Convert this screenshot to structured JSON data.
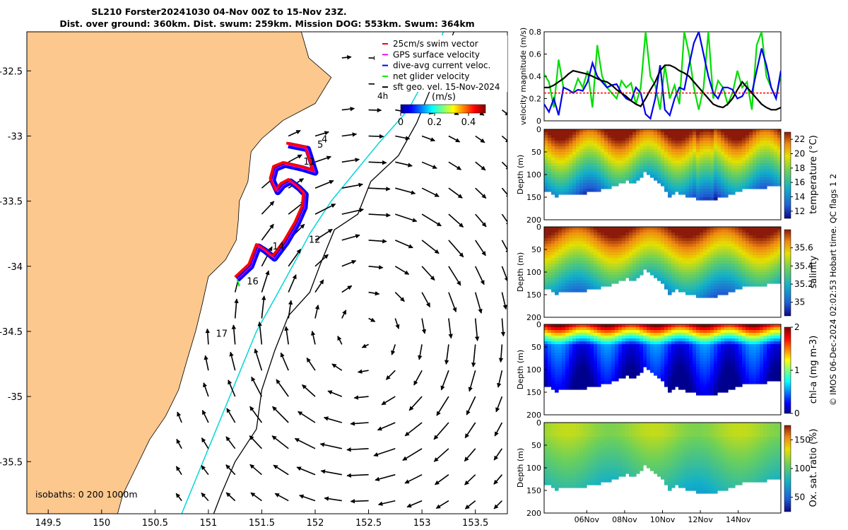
{
  "figure": {
    "title_line1": "SL210 Forster20241030 04-Nov 00Z to 15-Nov 23Z.",
    "title_line2": "Dist. over ground: 360km. Dist. swum: 259km. Mission DOG: 553km. Swum: 364km",
    "credit": "© IMOS 06-Dec-2024 02:02:53 Hobart time. QC flags 1  2"
  },
  "chart_data": [
    {
      "type": "map",
      "name": "glider-track-map",
      "xlim": [
        149.3,
        153.8
      ],
      "ylim": [
        -35.9,
        -32.2
      ],
      "x_ticks": [
        149.5,
        150,
        150.5,
        151,
        151.5,
        152,
        152.5,
        153,
        153.5
      ],
      "x_tick_labels": [
        "149.5",
        "150",
        "150.5",
        "151",
        "151.5",
        "152",
        "152.5",
        "153",
        "153.5"
      ],
      "y_ticks": [
        -32.5,
        -33,
        -33.5,
        -34,
        -34.5,
        -35,
        -35.5
      ],
      "y_tick_labels": [
        "-32.5",
        "-33",
        "-33.5",
        "-34",
        "-34.5",
        "-35",
        "-35.5"
      ],
      "legend": [
        {
          "label": "25cm/s swim vector",
          "color": "#ff0000"
        },
        {
          "label": "GPS surface velocity",
          "color": "#ff00ff"
        },
        {
          "label": "dive-avg current veloc.",
          "color": "#0000ff"
        },
        {
          "label": "net glider velocity",
          "color": "#00ee00"
        },
        {
          "label": "sft geo. vel. 15-Nov-2024",
          "color": "#000000"
        }
      ],
      "legend_time_label": "4h",
      "colorbar": {
        "title": "(m/s)",
        "ticks": [
          "0",
          "0.2",
          "0.4"
        ],
        "range": [
          0,
          0.5
        ]
      },
      "isobath_note": "isobaths: 0   200   1000m",
      "coast": [
        {
          "lon": 149.3,
          "lat": -32.2
        },
        {
          "lon": 151.87,
          "lat": -32.2
        },
        {
          "lon": 151.94,
          "lat": -32.4
        },
        {
          "lon": 152.15,
          "lat": -32.55
        },
        {
          "lon": 152.0,
          "lat": -32.75
        },
        {
          "lon": 151.7,
          "lat": -32.88
        },
        {
          "lon": 151.5,
          "lat": -33.02
        },
        {
          "lon": 151.4,
          "lat": -33.12
        },
        {
          "lon": 151.37,
          "lat": -33.35
        },
        {
          "lon": 151.29,
          "lat": -33.5
        },
        {
          "lon": 151.28,
          "lat": -33.65
        },
        {
          "lon": 151.26,
          "lat": -33.8
        },
        {
          "lon": 151.16,
          "lat": -33.95
        },
        {
          "lon": 151.0,
          "lat": -34.08
        },
        {
          "lon": 150.94,
          "lat": -34.3
        },
        {
          "lon": 150.88,
          "lat": -34.5
        },
        {
          "lon": 150.8,
          "lat": -34.72
        },
        {
          "lon": 150.72,
          "lat": -34.95
        },
        {
          "lon": 150.6,
          "lat": -35.15
        },
        {
          "lon": 150.45,
          "lat": -35.33
        },
        {
          "lon": 150.32,
          "lat": -35.55
        },
        {
          "lon": 150.2,
          "lat": -35.75
        },
        {
          "lon": 150.15,
          "lat": -35.9
        },
        {
          "lon": 149.3,
          "lat": -35.9
        }
      ],
      "isobath_200": [
        {
          "lon": 153.2,
          "lat": -32.2
        },
        {
          "lon": 153.07,
          "lat": -32.5
        },
        {
          "lon": 152.87,
          "lat": -32.8
        },
        {
          "lon": 152.6,
          "lat": -33.05
        },
        {
          "lon": 152.4,
          "lat": -33.25
        },
        {
          "lon": 152.15,
          "lat": -33.5
        },
        {
          "lon": 151.95,
          "lat": -33.75
        },
        {
          "lon": 151.82,
          "lat": -33.95
        },
        {
          "lon": 151.62,
          "lat": -34.25
        },
        {
          "lon": 151.45,
          "lat": -34.5
        },
        {
          "lon": 151.3,
          "lat": -34.8
        },
        {
          "lon": 151.15,
          "lat": -35.1
        },
        {
          "lon": 151.0,
          "lat": -35.4
        },
        {
          "lon": 150.85,
          "lat": -35.7
        },
        {
          "lon": 150.75,
          "lat": -35.9
        }
      ],
      "isobath_1000": [
        {
          "lon": 153.3,
          "lat": -32.2
        },
        {
          "lon": 153.2,
          "lat": -32.4
        },
        {
          "lon": 153.1,
          "lat": -32.6
        },
        {
          "lon": 152.95,
          "lat": -32.9
        },
        {
          "lon": 152.78,
          "lat": -33.15
        },
        {
          "lon": 152.52,
          "lat": -33.35
        },
        {
          "lon": 152.4,
          "lat": -33.6
        },
        {
          "lon": 152.18,
          "lat": -33.72
        },
        {
          "lon": 152.05,
          "lat": -33.98
        },
        {
          "lon": 151.95,
          "lat": -34.2
        },
        {
          "lon": 151.75,
          "lat": -34.38
        },
        {
          "lon": 151.62,
          "lat": -34.65
        },
        {
          "lon": 151.5,
          "lat": -34.95
        },
        {
          "lon": 151.45,
          "lat": -35.25
        },
        {
          "lon": 151.25,
          "lat": -35.5
        },
        {
          "lon": 151.12,
          "lat": -35.75
        },
        {
          "lon": 151.05,
          "lat": -35.9
        }
      ],
      "track": [
        {
          "lon": 151.27,
          "lat": -34.1
        },
        {
          "lon": 151.4,
          "lat": -34.0
        },
        {
          "lon": 151.47,
          "lat": -33.85
        },
        {
          "lon": 151.53,
          "lat": -33.88
        },
        {
          "lon": 151.62,
          "lat": -33.94
        },
        {
          "lon": 151.73,
          "lat": -33.82
        },
        {
          "lon": 151.83,
          "lat": -33.68
        },
        {
          "lon": 151.9,
          "lat": -33.55
        },
        {
          "lon": 151.91,
          "lat": -33.45
        },
        {
          "lon": 151.85,
          "lat": -33.4
        },
        {
          "lon": 151.77,
          "lat": -33.35
        },
        {
          "lon": 151.7,
          "lat": -33.38
        },
        {
          "lon": 151.65,
          "lat": -33.43
        },
        {
          "lon": 151.6,
          "lat": -33.34
        },
        {
          "lon": 151.63,
          "lat": -33.25
        },
        {
          "lon": 151.72,
          "lat": -33.22
        },
        {
          "lon": 151.88,
          "lat": -33.25
        },
        {
          "lon": 152.0,
          "lat": -33.28
        },
        {
          "lon": 151.93,
          "lat": -33.1
        },
        {
          "lon": 151.75,
          "lat": -33.07
        }
      ],
      "track_day_labels": [
        {
          "text": "4",
          "lon": 152.06,
          "lat": -33.05
        },
        {
          "text": "5",
          "lon": 152.02,
          "lat": -33.09
        },
        {
          "text": "11",
          "lon": 151.89,
          "lat": -33.22
        },
        {
          "text": "12",
          "lon": 151.94,
          "lat": -33.82
        },
        {
          "text": "14",
          "lon": 151.6,
          "lat": -33.87
        },
        {
          "text": "16",
          "lon": 151.36,
          "lat": -34.14
        },
        {
          "text": "17",
          "lon": 151.07,
          "lat": -34.54
        }
      ],
      "vector_field": {
        "lon_min": 150.75,
        "lon_max": 153.75,
        "lon_step": 0.25,
        "lat_min": -35.8,
        "lat_max": -32.4,
        "lat_step": 0.2,
        "eddy_center": {
          "lon": 152.45,
          "lat": -34.5
        }
      }
    },
    {
      "type": "line",
      "name": "velocity-panel",
      "ylabel": "velocity magnitude (m/s)",
      "ylim": [
        0,
        0.8
      ],
      "y_ticks": [
        "0",
        "0.2",
        "0.4",
        "0.6",
        "0.8"
      ],
      "series": [
        {
          "name": "net glider velocity",
          "color": "#00dd00",
          "values": [
            0.42,
            0.35,
            0.12,
            0.55,
            0.3,
            0.28,
            0.25,
            0.38,
            0.3,
            0.45,
            0.12,
            0.68,
            0.4,
            0.3,
            0.25,
            0.2,
            0.36,
            0.3,
            0.34,
            0.15,
            0.3,
            0.8,
            0.4,
            0.32,
            0.1,
            0.5,
            0.2,
            0.32,
            0.15,
            0.8,
            0.6,
            0.3,
            0.1,
            0.3,
            0.8,
            0.2,
            0.36,
            0.3,
            0.15,
            0.25,
            0.45,
            0.3,
            0.35,
            0.1,
            0.68,
            0.8,
            0.4,
            0.3,
            0.2,
            0.42
          ]
        },
        {
          "name": "dive-avg current veloc.",
          "color": "#0000ee",
          "values": [
            0.15,
            0.08,
            0.2,
            0.05,
            0.3,
            0.28,
            0.25,
            0.28,
            0.27,
            0.35,
            0.52,
            0.4,
            0.35,
            0.3,
            0.32,
            0.33,
            0.25,
            0.2,
            0.18,
            0.3,
            0.25,
            0.06,
            0.02,
            0.2,
            0.5,
            0.1,
            0.05,
            0.2,
            0.3,
            0.28,
            0.5,
            0.7,
            0.8,
            0.6,
            0.4,
            0.25,
            0.2,
            0.3,
            0.3,
            0.28,
            0.2,
            0.22,
            0.3,
            0.25,
            0.45,
            0.65,
            0.5,
            0.3,
            0.2,
            0.45
          ]
        },
        {
          "name": "sft geo. vel.",
          "color": "#000000",
          "values": [
            0.3,
            0.3,
            0.32,
            0.35,
            0.38,
            0.42,
            0.45,
            0.44,
            0.43,
            0.42,
            0.4,
            0.38,
            0.36,
            0.35,
            0.32,
            0.28,
            0.25,
            0.22,
            0.18,
            0.15,
            0.13,
            0.2,
            0.28,
            0.35,
            0.45,
            0.5,
            0.5,
            0.48,
            0.45,
            0.43,
            0.4,
            0.35,
            0.3,
            0.25,
            0.2,
            0.15,
            0.13,
            0.12,
            0.15,
            0.2,
            0.28,
            0.35,
            0.3,
            0.25,
            0.2,
            0.15,
            0.12,
            0.1,
            0.1,
            0.12
          ]
        },
        {
          "name": "25cm/s swim vector",
          "color": "#ff0000",
          "values": [
            0.25,
            0.25,
            0.25,
            0.25,
            0.25,
            0.25,
            0.25,
            0.25,
            0.25,
            0.25
          ]
        }
      ]
    },
    {
      "type": "heatmap",
      "name": "temperature-section",
      "colorbar_label": "temperature (°C)",
      "crange": [
        11,
        23
      ],
      "colorbar_ticks": [
        "22",
        "20",
        "18",
        "16",
        "14",
        "12"
      ],
      "ylabel": "Depth (m)",
      "ylim": [
        200,
        0
      ],
      "y_ticks": [
        "0",
        "50",
        "100",
        "150",
        "200"
      ]
    },
    {
      "type": "heatmap",
      "name": "salinity-section",
      "colorbar_label": "salinity",
      "crange": [
        34.85,
        35.8
      ],
      "colorbar_ticks": [
        "35.6",
        "35.4",
        "35.2",
        "35"
      ],
      "ylabel": "Depth (m)",
      "ylim": [
        200,
        0
      ],
      "y_ticks": [
        "0",
        "50",
        "100",
        "150",
        "200"
      ]
    },
    {
      "type": "heatmap",
      "name": "chla-section",
      "colorbar_label": "chl-a (mg m-3)",
      "crange": [
        0,
        2
      ],
      "colorbar_ticks": [
        "2",
        "1",
        "0"
      ],
      "ylabel": "Depth (m)",
      "ylim": [
        200,
        0
      ],
      "y_ticks": [
        "0",
        "50",
        "100",
        "150",
        "200"
      ]
    },
    {
      "type": "heatmap",
      "name": "oxygen-section",
      "colorbar_label": "Ox. sat. ratio (%)",
      "crange": [
        25,
        175
      ],
      "colorbar_ticks": [
        "150",
        "100",
        "50"
      ],
      "ylabel": "Depth (m)",
      "ylim": [
        200,
        0
      ],
      "y_ticks": [
        "0",
        "50",
        "100",
        "150",
        "200"
      ],
      "x_tick_labels": [
        "06Nov",
        "08Nov",
        "10Nov",
        "12Nov",
        "14Nov"
      ]
    }
  ]
}
